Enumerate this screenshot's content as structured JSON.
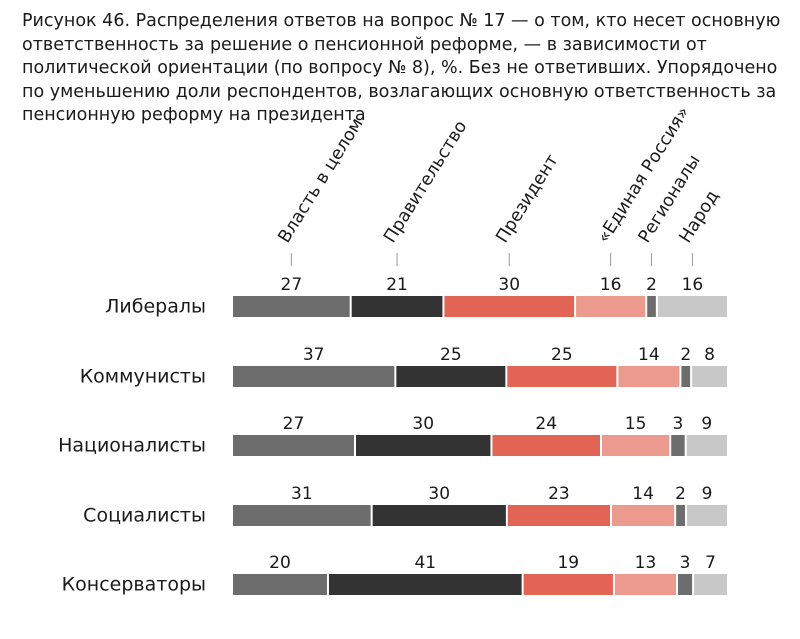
{
  "caption": "Рисунок 46. Распределения ответов на вопрос № 17 — о том, кто несет основную ответственность за решение о пенсионной реформе, — в зависимости от политической ориентации (по вопросу № 8), %. Без не ответивших. Упорядочено по уменьшению доли респондентов, возлагающих основную ответственность за пенсионную реформу на президента",
  "chart_data": {
    "type": "bar",
    "stacked": true,
    "orientation": "horizontal",
    "unit": "%",
    "categories": [
      "Либералы",
      "Коммунисты",
      "Националисты",
      "Социалисты",
      "Консерваторы"
    ],
    "series": [
      {
        "name": "Власть в целом",
        "color": "#6d6d6d",
        "values": [
          27,
          37,
          27,
          31,
          20
        ]
      },
      {
        "name": "Правительство",
        "color": "#333333",
        "values": [
          21,
          25,
          30,
          30,
          41
        ]
      },
      {
        "name": "Президент",
        "color": "#e26454",
        "values": [
          30,
          25,
          24,
          23,
          19
        ]
      },
      {
        "name": "«Единая Россия»",
        "color": "#ec9a8d",
        "values": [
          16,
          14,
          15,
          14,
          13
        ]
      },
      {
        "name": "Регионалы",
        "color": "#6d6d6d",
        "values": [
          2,
          2,
          3,
          2,
          3
        ]
      },
      {
        "name": "Народ",
        "color": "#c8c8c8",
        "values": [
          16,
          8,
          9,
          9,
          7
        ]
      }
    ],
    "legend_position": "top, rotated labels",
    "grid": false
  }
}
